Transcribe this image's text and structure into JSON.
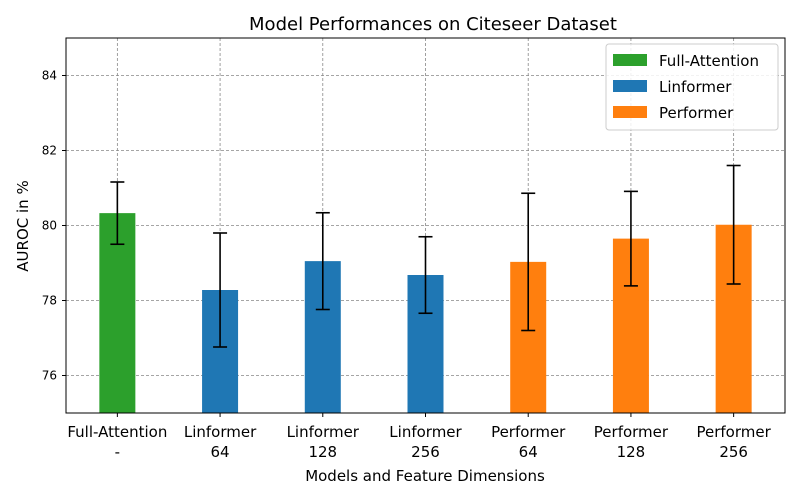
{
  "chart_data": {
    "type": "bar",
    "title": "Model Performances on Citeseer Dataset",
    "xlabel": "Models and Feature Dimensions",
    "ylabel": "AUROC in %",
    "ylim": [
      75,
      85
    ],
    "yticks": [
      76,
      78,
      80,
      82,
      84
    ],
    "grid": true,
    "legend_position": "top-right",
    "categories": [
      [
        "Full-Attention",
        "-"
      ],
      [
        "Linformer",
        "64"
      ],
      [
        "Linformer",
        "128"
      ],
      [
        "Linformer",
        "256"
      ],
      [
        "Performer",
        "64"
      ],
      [
        "Performer",
        "128"
      ],
      [
        "Performer",
        "256"
      ]
    ],
    "series": [
      {
        "name": "Full-Attention",
        "color": "#2ca02c",
        "indices": [
          0
        ]
      },
      {
        "name": "Linformer",
        "color": "#1f77b4",
        "indices": [
          1,
          2,
          3
        ]
      },
      {
        "name": "Performer",
        "color": "#ff7f0e",
        "indices": [
          4,
          5,
          6
        ]
      }
    ],
    "values": [
      80.33,
      78.28,
      79.05,
      78.68,
      79.03,
      79.65,
      80.02
    ],
    "errors": [
      0.83,
      1.52,
      1.29,
      1.02,
      1.83,
      1.26,
      1.58
    ]
  }
}
